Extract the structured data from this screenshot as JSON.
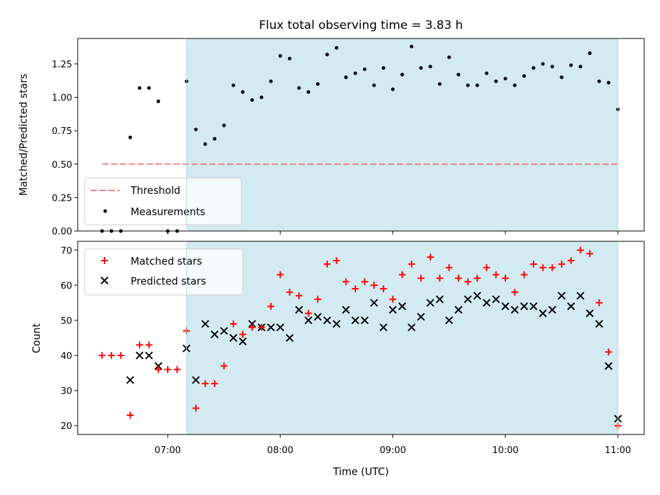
{
  "title": "Flux total observing time = 3.83 h",
  "chart_data": [
    {
      "type": "scatter",
      "ylabel": "Matched/Predicted stars",
      "xlabel": "",
      "ylim": [
        0,
        1.44
      ],
      "yticks": [
        "0.00",
        "0.25",
        "0.50",
        "0.75",
        "1.00",
        "1.25"
      ],
      "xlim": [
        "06:12",
        "11:14"
      ],
      "shaded_interval": [
        "07:10",
        "11:00"
      ],
      "shaded_color": "#d2eaf0",
      "threshold": {
        "value": 0.5,
        "from": "06:25",
        "to": "11:00",
        "color": "#f08080"
      },
      "legend": [
        "Threshold",
        "Measurements"
      ],
      "legend_position": "lower-left",
      "series": [
        {
          "name": "Measurements",
          "x": [
            "06:25",
            "06:30",
            "06:35",
            "06:40",
            "06:45",
            "06:50",
            "06:55",
            "07:00",
            "07:05",
            "07:10",
            "07:15",
            "07:20",
            "07:25",
            "07:30",
            "07:35",
            "07:40",
            "07:45",
            "07:50",
            "07:55",
            "08:00",
            "08:05",
            "08:10",
            "08:15",
            "08:20",
            "08:25",
            "08:30",
            "08:35",
            "08:40",
            "08:45",
            "08:50",
            "08:55",
            "09:00",
            "09:05",
            "09:10",
            "09:15",
            "09:20",
            "09:25",
            "09:30",
            "09:35",
            "09:40",
            "09:45",
            "09:50",
            "09:55",
            "10:00",
            "10:05",
            "10:10",
            "10:15",
            "10:20",
            "10:25",
            "10:30",
            "10:35",
            "10:40",
            "10:45",
            "10:50",
            "10:55",
            "11:00"
          ],
          "y": [
            0.0,
            0.0,
            0.0,
            0.7,
            1.07,
            1.07,
            0.97,
            0.0,
            0.0,
            1.12,
            0.76,
            0.65,
            0.69,
            0.79,
            1.09,
            1.04,
            0.98,
            1.0,
            1.12,
            1.31,
            1.29,
            1.07,
            1.04,
            1.1,
            1.32,
            1.37,
            1.15,
            1.18,
            1.21,
            1.09,
            1.22,
            1.06,
            1.17,
            1.38,
            1.22,
            1.23,
            1.1,
            1.3,
            1.17,
            1.09,
            1.09,
            1.18,
            1.12,
            1.14,
            1.09,
            1.16,
            1.22,
            1.25,
            1.23,
            1.15,
            1.24,
            1.23,
            1.33,
            1.12,
            1.11,
            0.91
          ]
        }
      ]
    },
    {
      "type": "scatter",
      "ylabel": "Count",
      "xlabel": "Time (UTC)",
      "ylim": [
        17.5,
        72.5
      ],
      "yticks": [
        "20",
        "30",
        "40",
        "50",
        "60",
        "70"
      ],
      "xticks": [
        "07:00",
        "08:00",
        "09:00",
        "10:00",
        "11:00"
      ],
      "xlim": [
        "06:12",
        "11:14"
      ],
      "shaded_interval": [
        "07:10",
        "11:00"
      ],
      "shaded_color": "#d2eaf0",
      "legend": [
        "Matched stars",
        "Predicted stars"
      ],
      "legend_position": "upper-left",
      "x": [
        "06:25",
        "06:30",
        "06:35",
        "06:40",
        "06:45",
        "06:50",
        "06:55",
        "07:00",
        "07:05",
        "07:10",
        "07:15",
        "07:20",
        "07:25",
        "07:30",
        "07:35",
        "07:40",
        "07:45",
        "07:50",
        "07:55",
        "08:00",
        "08:05",
        "08:10",
        "08:15",
        "08:20",
        "08:25",
        "08:30",
        "08:35",
        "08:40",
        "08:45",
        "08:50",
        "08:55",
        "09:00",
        "09:05",
        "09:10",
        "09:15",
        "09:20",
        "09:25",
        "09:30",
        "09:35",
        "09:40",
        "09:45",
        "09:50",
        "09:55",
        "10:00",
        "10:05",
        "10:10",
        "10:15",
        "10:20",
        "10:25",
        "10:30",
        "10:35",
        "10:40",
        "10:45",
        "10:50",
        "10:55",
        "11:00"
      ],
      "series": [
        {
          "name": "Matched stars",
          "color": "#ff0000",
          "marker": "plus",
          "values": [
            40,
            40,
            40,
            23,
            43,
            43,
            36,
            36,
            36,
            47,
            25,
            32,
            32,
            37,
            49,
            46,
            48,
            48,
            54,
            63,
            58,
            57,
            52,
            56,
            66,
            67,
            61,
            59,
            61,
            60,
            59,
            56,
            63,
            66,
            62,
            68,
            62,
            65,
            62,
            61,
            62,
            65,
            63,
            62,
            58,
            63,
            66,
            65,
            65,
            66,
            67,
            70,
            69,
            55,
            41,
            20
          ]
        },
        {
          "name": "Predicted stars",
          "color": "#000000",
          "marker": "x",
          "values": [
            null,
            null,
            null,
            33,
            40,
            40,
            37,
            null,
            null,
            42,
            33,
            49,
            46,
            47,
            45,
            44,
            49,
            48,
            48,
            48,
            45,
            53,
            50,
            51,
            50,
            49,
            53,
            50,
            50,
            55,
            48,
            53,
            54,
            48,
            51,
            55,
            56,
            50,
            53,
            56,
            57,
            55,
            56,
            54,
            53,
            54,
            54,
            52,
            53,
            57,
            54,
            57,
            52,
            49,
            37,
            22
          ]
        }
      ]
    }
  ]
}
